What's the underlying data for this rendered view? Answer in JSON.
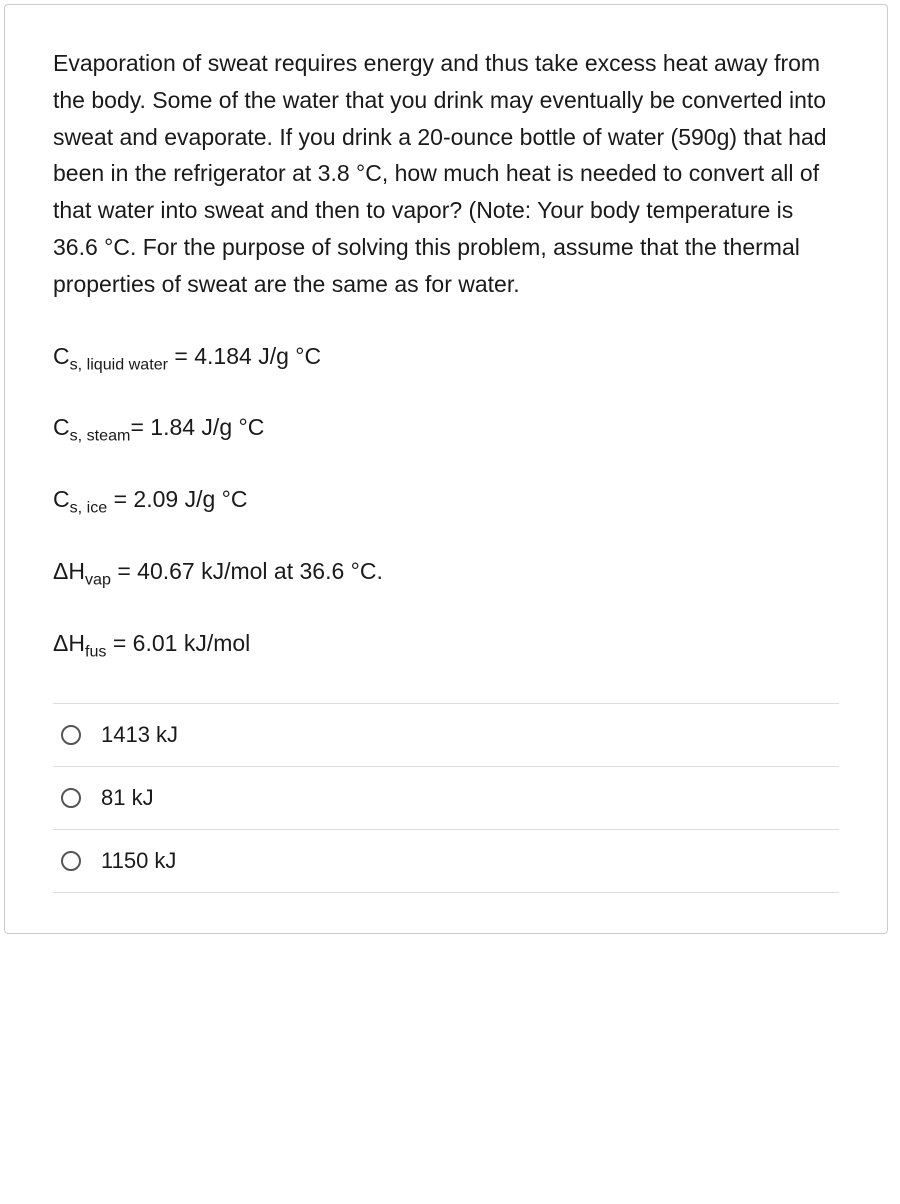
{
  "question": {
    "prompt": "Evaporation of sweat requires energy and thus take excess heat away from the body. Some of the water that you drink may eventually be converted into sweat and evaporate. If you drink a 20-ounce bottle of water (590g) that had been in the refrigerator at 3.8 °C, how much heat is needed to convert all of that water into sweat and then to vapor? (Note: Your body temperature is 36.6 °C. For the purpose of solving this problem, assume that the thermal properties of sweat are the same as for water."
  },
  "constants": {
    "c_liquid_sub": "s, liquid water",
    "c_liquid_val": " = 4.184 J/g °C",
    "c_steam_sub": "s, steam",
    "c_steam_val": "= 1.84 J/g °C",
    "c_ice_sub": "s, ice",
    "c_ice_val": " = 2.09 J/g °C",
    "dh_vap_sub": "vap",
    "dh_vap_val": " = 40.67 kJ/mol at 36.6 °C.",
    "dh_fus_sub": "fus",
    "dh_fus_val": " = 6.01 kJ/mol"
  },
  "options": {
    "a": "1413 kJ",
    "b": "81 kJ",
    "c": "1150 kJ"
  },
  "styling": {
    "text_color": "#1a1a1a",
    "border_color": "#cccccc",
    "divider_color": "#dddddd",
    "background_color": "#ffffff",
    "font_size_body": 23,
    "font_size_option": 22,
    "radio_border_color": "#555555"
  }
}
